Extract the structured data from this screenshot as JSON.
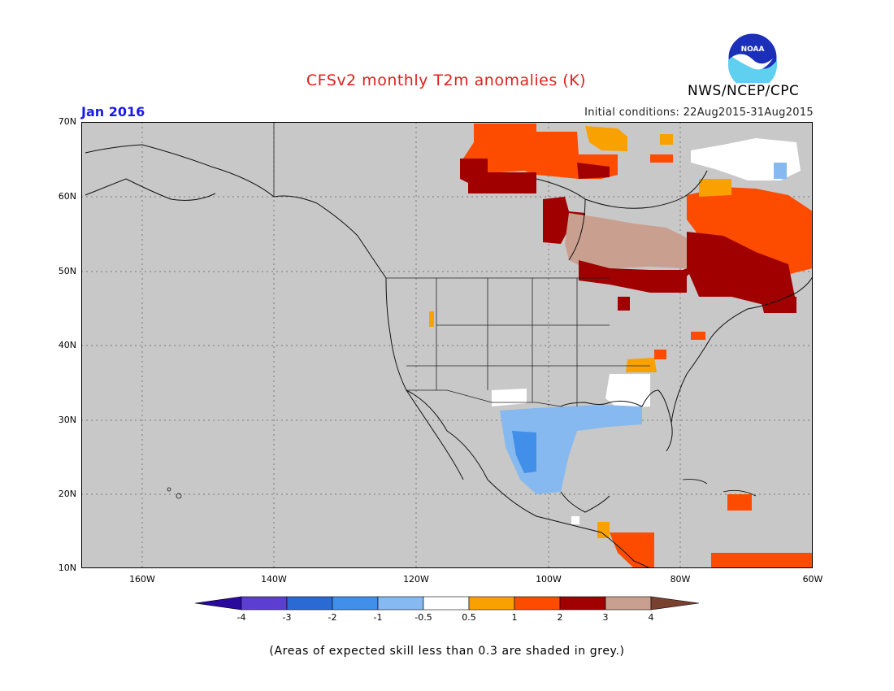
{
  "title": "CFSv2 monthly T2m anomalies (K)",
  "period": "Jan 2016",
  "org": "NWS/NCEP/CPC",
  "logo_text": "NOAA",
  "initial_conditions": "Initial conditions: 22Aug2015-31Aug2015",
  "colors": {
    "title": "#e0201b",
    "period": "#1a1aee",
    "map_background": "#c8c8c8",
    "grid": "#888888"
  },
  "lat_labels": [
    "70N",
    "60N",
    "50N",
    "40N",
    "30N",
    "20N",
    "10N"
  ],
  "lon_labels": [
    "160W",
    "140W",
    "120W",
    "100W",
    "80W",
    "60W"
  ],
  "colorbar": {
    "labels": [
      "-4",
      "-3",
      "-2",
      "-1",
      "-0.5",
      "0.5",
      "1",
      "2",
      "3",
      "4"
    ],
    "colors": [
      "#2a0a9e",
      "#5c3fd2",
      "#2a6ad2",
      "#418fe8",
      "#86b9ef",
      "#ffffff",
      "#f9a100",
      "#fd4b00",
      "#a10000",
      "#c9a090",
      "#7a4030"
    ]
  },
  "footnote": "(Areas of expected skill less than 0.3 are shaded in grey.)"
}
